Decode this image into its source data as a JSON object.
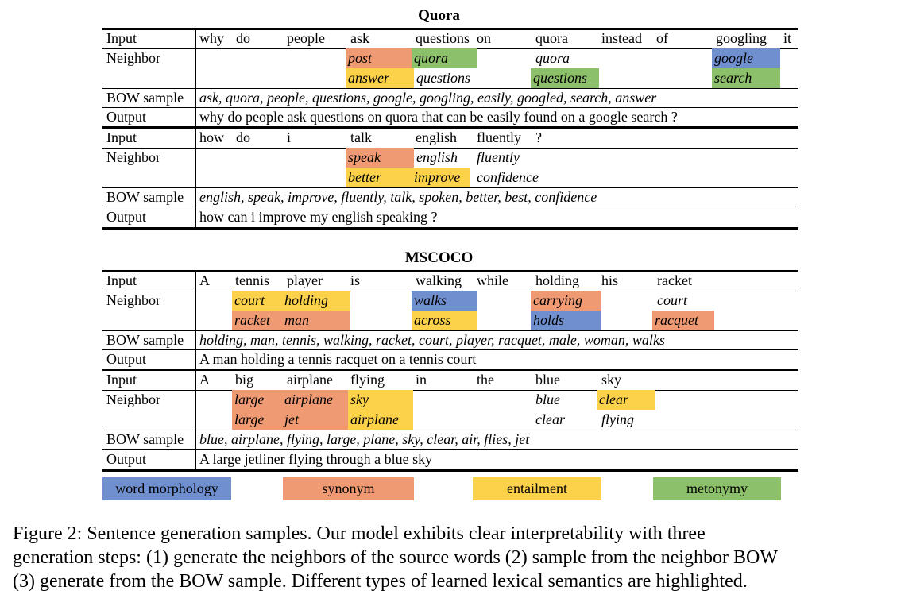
{
  "quora": {
    "title": "Quora",
    "ex1": {
      "input_label": "Input",
      "input_words": [
        "why",
        "do",
        "people",
        "ask",
        "questions",
        "on",
        "quora",
        "instead",
        "of",
        "googling",
        "it"
      ],
      "neighbor_label": "Neighbor",
      "neighbors_row1": [
        "post",
        "quora",
        "quora",
        "google"
      ],
      "neighbors_row2": [
        "answer",
        "questions",
        "questions",
        "search"
      ],
      "bow_label": "BOW sample",
      "bow": "ask, quora, people, questions, google, googling, easily, googled, search, answer",
      "output_label": "Output",
      "output": "why do people ask questions on quora that can be easily found on a google search ?"
    },
    "ex2": {
      "input_label": "Input",
      "input_words": [
        "how",
        "do",
        "i",
        "talk",
        "english",
        "fluently",
        "?"
      ],
      "neighbor_label": "Neighbor",
      "neighbors_row1": [
        "speak",
        "english",
        "fluently"
      ],
      "neighbors_row2": [
        "better",
        "improve",
        "confidence"
      ],
      "bow_label": "BOW sample",
      "bow": "english, speak, improve, fluently, talk, spoken, better, best, confidence",
      "output_label": "Output",
      "output": "how can i improve my english speaking ?"
    }
  },
  "mscoco": {
    "title": "MSCOCO",
    "ex1": {
      "input_label": "Input",
      "input_words": [
        "A",
        "tennis",
        "player",
        "is",
        "walking",
        "while",
        "holding",
        "his",
        "racket"
      ],
      "neighbor_label": "Neighbor",
      "neighbors_row1": [
        "court",
        "holding",
        "walks",
        "carrying",
        "court"
      ],
      "neighbors_row2": [
        "racket",
        "man",
        "across",
        "holds",
        "racquet"
      ],
      "bow_label": "BOW sample",
      "bow": "holding, man, tennis, walking, racket, court, player, racquet, male, woman, walks",
      "output_label": "Output",
      "output": "A man holding a tennis racquet on a tennis court"
    },
    "ex2": {
      "input_label": "Input",
      "input_words": [
        "A",
        "big",
        "airplane",
        "flying",
        "in",
        "the",
        "blue",
        "sky"
      ],
      "neighbor_label": "Neighbor",
      "neighbors_row1": [
        "large",
        "airplane",
        "sky",
        "blue",
        "clear"
      ],
      "neighbors_row2": [
        "large",
        "jet",
        "airplane",
        "clear",
        "flying"
      ],
      "bow_label": "BOW sample",
      "bow": "blue, airplane, flying, large, plane, sky, clear, air, flies, jet",
      "output_label": "Output",
      "output": "A large jetliner flying through a blue sky"
    }
  },
  "legend": [
    {
      "label": "word morphology",
      "color": "#6f8fcf"
    },
    {
      "label": "synonym",
      "color": "#ef9a73"
    },
    {
      "label": "entailment",
      "color": "#fdd24b"
    },
    {
      "label": "metonymy",
      "color": "#8dc06a"
    }
  ],
  "caption": {
    "line1": "Figure 2:   Sentence generation samples.  Our model exhibits clear interpretability with three",
    "line2": "generation steps: (1) generate the neighbors of the source words (2) sample from the neighbor BOW",
    "line3": "(3) generate from the BOW sample. Different types of learned lexical semantics are highlighted."
  }
}
